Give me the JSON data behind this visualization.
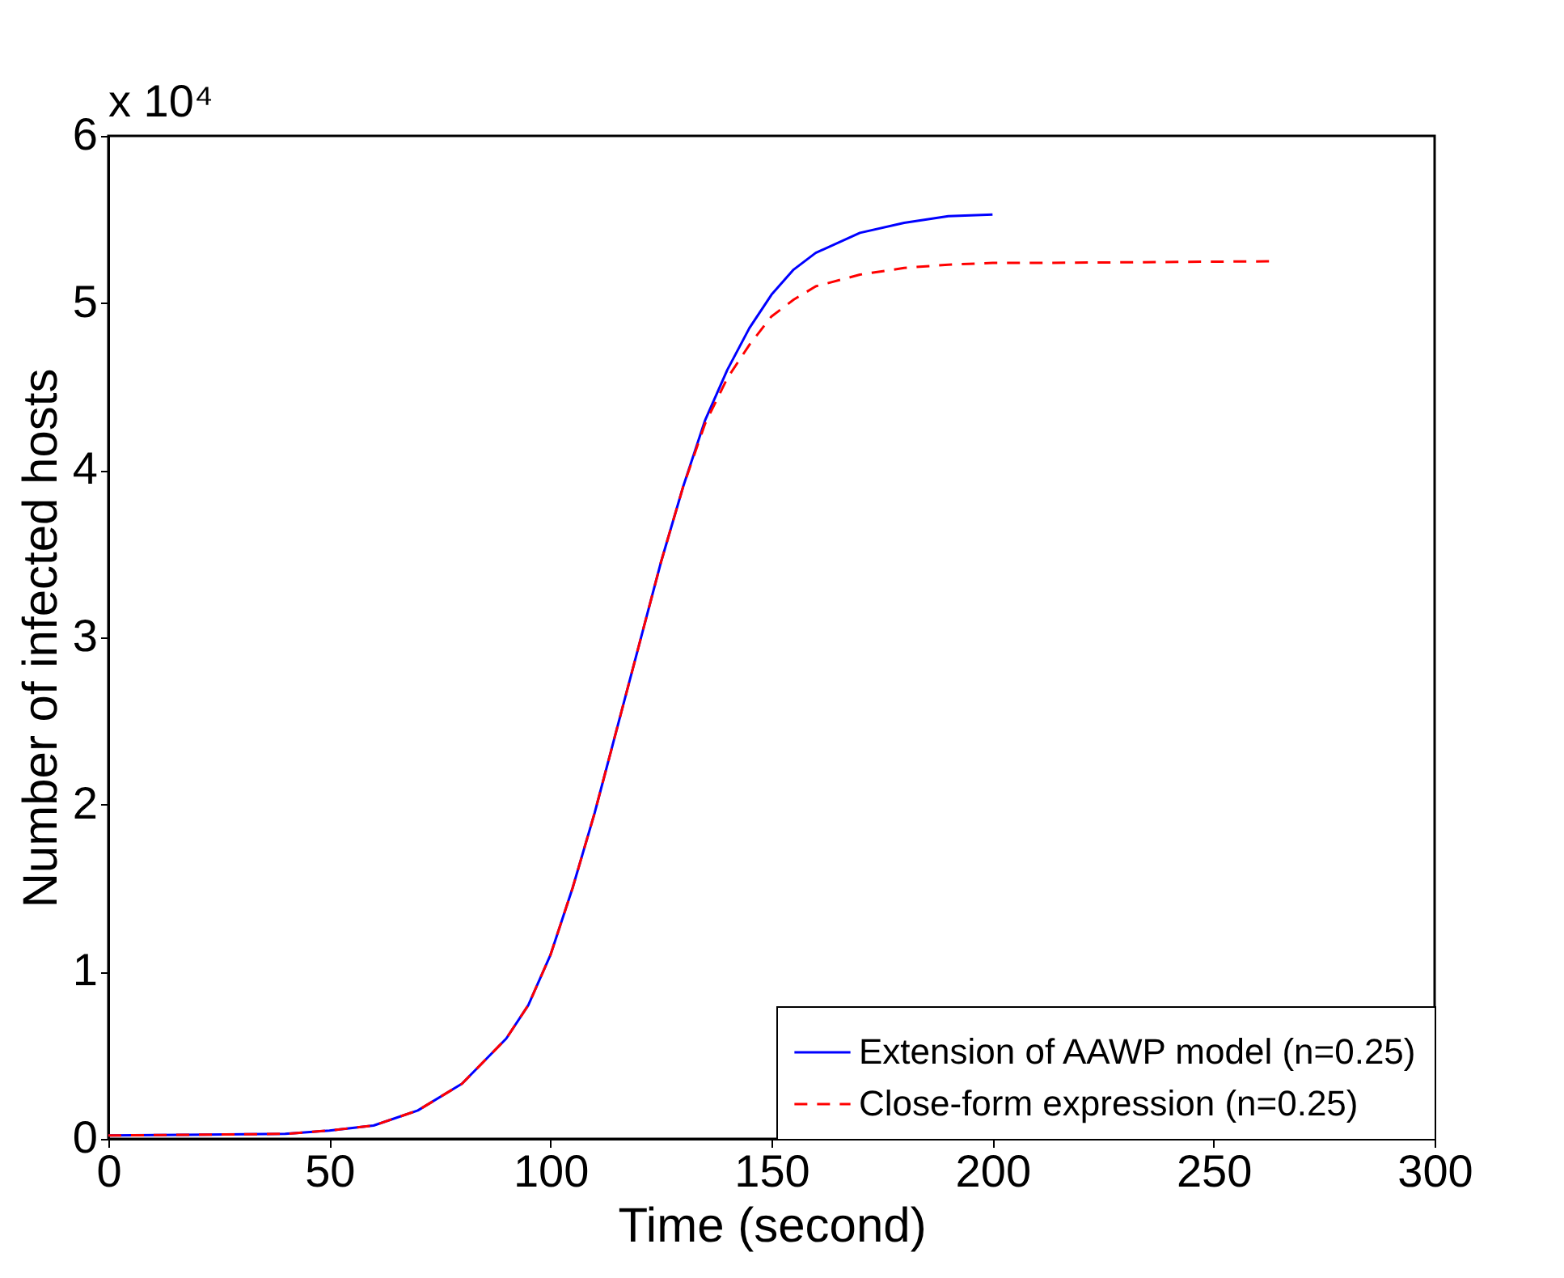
{
  "chart_data": {
    "type": "line",
    "xlabel": "Time (second)",
    "ylabel": "Number of infected hosts",
    "annotations": [
      "x 10⁴"
    ],
    "xlim": [
      0,
      300
    ],
    "xticks": [
      0,
      50,
      100,
      150,
      200,
      250,
      300
    ],
    "ylim": [
      0,
      6
    ],
    "yticks": [
      0,
      1,
      2,
      3,
      4,
      5,
      6
    ],
    "grid": false,
    "legend": "bottom right",
    "series": [
      {
        "name": "Extension of AAWP model (n=0.25)",
        "color": "#0000ff",
        "line_style": "solid",
        "x": [
          0,
          40,
          50,
          60,
          70,
          80,
          90,
          95,
          100,
          105,
          110,
          115,
          120,
          125,
          130,
          135,
          140,
          145,
          150,
          155,
          160,
          170,
          180,
          190,
          200
        ],
        "values": [
          0.02,
          0.03,
          0.05,
          0.08,
          0.17,
          0.33,
          0.6,
          0.8,
          1.1,
          1.5,
          1.95,
          2.45,
          2.95,
          3.45,
          3.9,
          4.3,
          4.6,
          4.85,
          5.05,
          5.2,
          5.3,
          5.42,
          5.48,
          5.52,
          5.53
        ]
      },
      {
        "name": "Close-form expression (n=0.25)",
        "color": "#ff0000",
        "line_style": "dashed",
        "x": [
          0,
          40,
          50,
          60,
          70,
          80,
          90,
          95,
          100,
          105,
          110,
          115,
          120,
          125,
          130,
          135,
          140,
          145,
          150,
          155,
          160,
          170,
          180,
          190,
          200,
          210,
          263
        ],
        "values": [
          0.02,
          0.03,
          0.05,
          0.08,
          0.17,
          0.33,
          0.6,
          0.8,
          1.1,
          1.5,
          1.95,
          2.45,
          2.95,
          3.45,
          3.9,
          4.28,
          4.55,
          4.75,
          4.92,
          5.02,
          5.1,
          5.17,
          5.21,
          5.23,
          5.24,
          5.24,
          5.25
        ]
      }
    ]
  }
}
